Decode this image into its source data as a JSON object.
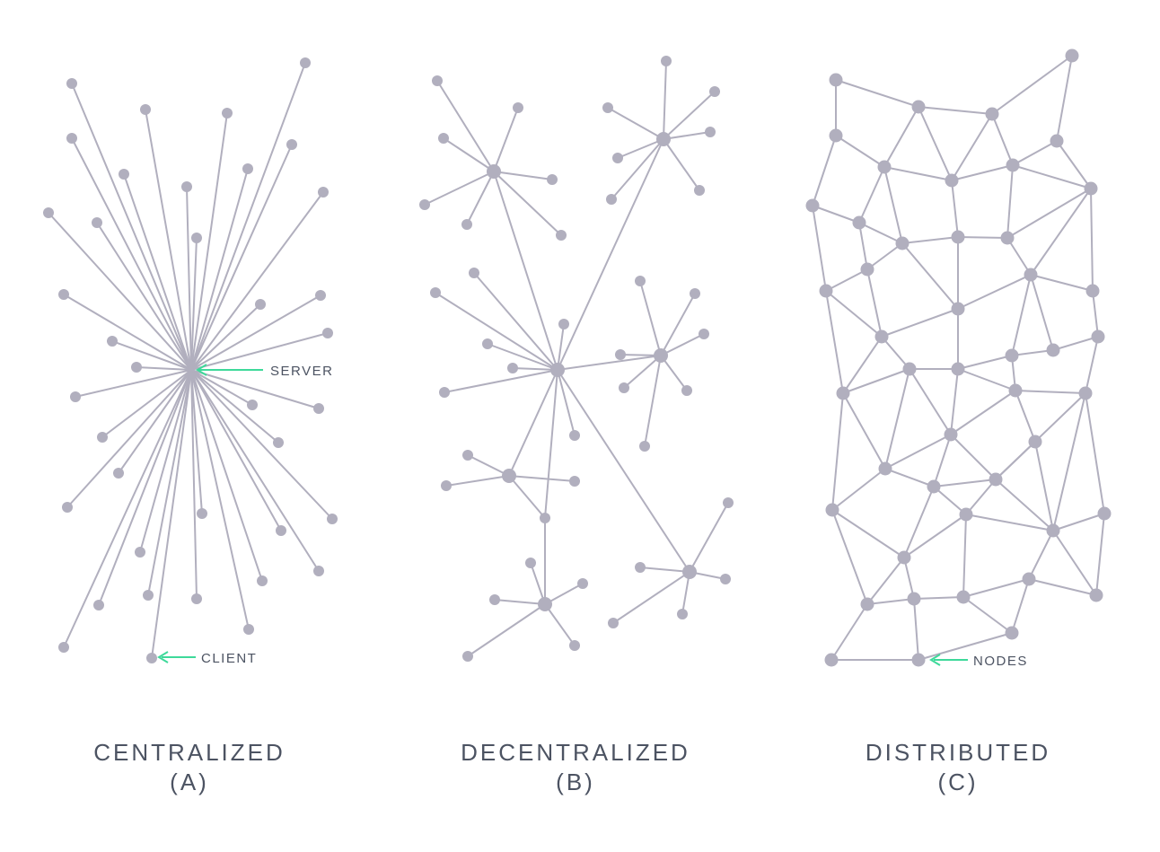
{
  "colors": {
    "node": "#b1afbe",
    "edge": "#b1afbe",
    "arrow": "#3ed99a",
    "text": "#4c5362"
  },
  "panels": [
    {
      "id": "A",
      "title": "CENTRALIZED",
      "letter": "(A)"
    },
    {
      "id": "B",
      "title": "DECENTRALIZED",
      "letter": "(B)"
    },
    {
      "id": "C",
      "title": "DISTRIBUTED",
      "letter": "(C)"
    }
  ],
  "callouts": {
    "server": "SERVER",
    "client": "CLIENT",
    "nodes": "NODES"
  }
}
